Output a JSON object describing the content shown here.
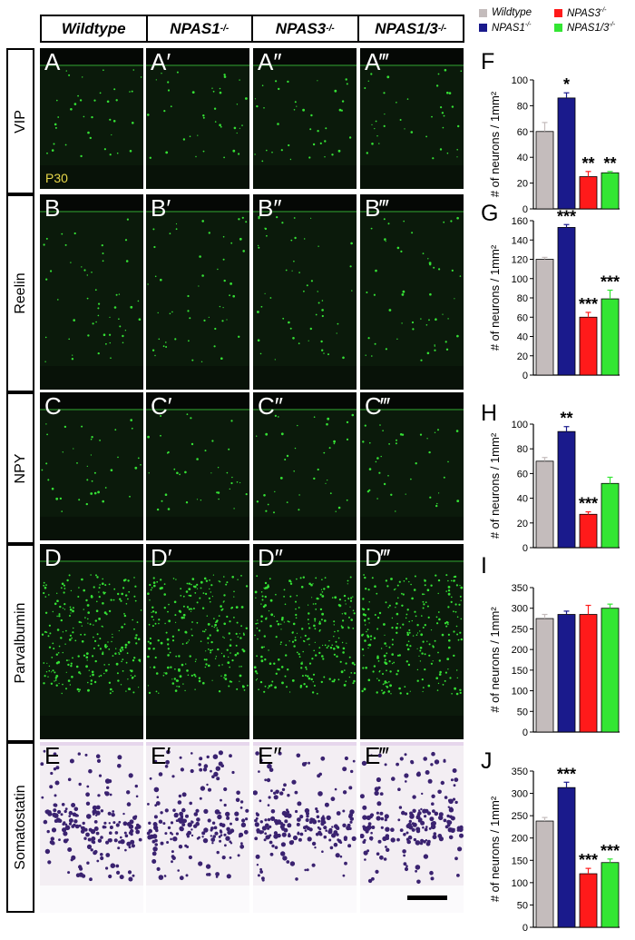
{
  "header": {
    "columns": [
      {
        "label": "Wildtype",
        "sup": ""
      },
      {
        "label": "NPAS1",
        "sup": "-/-"
      },
      {
        "label": "NPAS3",
        "sup": "-/-"
      },
      {
        "label": "NPAS1/3",
        "sup": "-/-"
      }
    ]
  },
  "rows": [
    {
      "label": "VIP",
      "panels": [
        "A",
        "A′",
        "A″",
        "A‴"
      ],
      "stain": "fluor",
      "density": 0.25
    },
    {
      "label": "Reelin",
      "panels": [
        "B",
        "B′",
        "B″",
        "B‴"
      ],
      "stain": "fluor",
      "density": 0.45
    },
    {
      "label": "NPY",
      "panels": [
        "C",
        "C′",
        "C″",
        "C‴"
      ],
      "stain": "fluor",
      "density": 0.25
    },
    {
      "label": "Parvalbumin",
      "panels": [
        "D",
        "D′",
        "D″",
        "D‴"
      ],
      "stain": "fluor-dense",
      "density": 1.0
    },
    {
      "label": "Somatostatin",
      "panels": [
        "E",
        "E′",
        "E″",
        "E‴"
      ],
      "stain": "ish",
      "density": 1.0
    }
  ],
  "age_label": "P30",
  "legend": [
    {
      "label": "Wildtype",
      "sup": "",
      "color": "#c4bcbc"
    },
    {
      "label": "NPAS3",
      "sup": "-/-",
      "color": "#ff1a1a"
    },
    {
      "label": "NPAS1",
      "sup": "-/-",
      "color": "#1a1a8c"
    },
    {
      "label": "NPAS1/3",
      "sup": "-/-",
      "color": "#33e633"
    }
  ],
  "colors": {
    "wildtype": "#c4bcbc",
    "npas1": "#1a1a8c",
    "npas3": "#ff1a1a",
    "npas13": "#33e633",
    "fluor_bg": "#0b1a0b",
    "fluor_cell": "#35e035",
    "ish_bg": "#f3eef3",
    "ish_cell": "#3a2270"
  },
  "chart_data": [
    {
      "type": "bar",
      "letter": "F",
      "ylabel": "# of neurons / 1mm²",
      "ylim": [
        0,
        100
      ],
      "yticks": [
        0,
        20,
        40,
        60,
        80,
        100
      ],
      "categories": [
        "Wildtype",
        "NPAS1-/-",
        "NPAS3-/-",
        "NPAS1/3-/-"
      ],
      "values": [
        60,
        86,
        25,
        28
      ],
      "errors": [
        7,
        4,
        4,
        1
      ],
      "stars": [
        "",
        "*",
        "**",
        "**"
      ]
    },
    {
      "type": "bar",
      "letter": "G",
      "ylabel": "# of neurons / 1mm²",
      "ylim": [
        0,
        160
      ],
      "yticks": [
        0,
        20,
        40,
        60,
        80,
        100,
        120,
        140,
        160
      ],
      "categories": [
        "Wildtype",
        "NPAS1-/-",
        "NPAS3-/-",
        "NPAS1/3-/-"
      ],
      "values": [
        120,
        153,
        60,
        79
      ],
      "errors": [
        2,
        3,
        5,
        9
      ],
      "stars": [
        "",
        "***",
        "***",
        "***"
      ]
    },
    {
      "type": "bar",
      "letter": "H",
      "ylabel": "# of neurons / 1mm²",
      "ylim": [
        0,
        100
      ],
      "yticks": [
        0,
        20,
        40,
        60,
        80,
        100
      ],
      "categories": [
        "Wildtype",
        "NPAS1-/-",
        "NPAS3-/-",
        "NPAS1/3-/-"
      ],
      "values": [
        70,
        94,
        27,
        52
      ],
      "errors": [
        3,
        4,
        2,
        5
      ],
      "stars": [
        "",
        "**",
        "***",
        ""
      ]
    },
    {
      "type": "bar",
      "letter": "I",
      "ylabel": "# of neurons / 1mm²",
      "ylim": [
        0,
        350
      ],
      "yticks": [
        0,
        50,
        100,
        150,
        200,
        250,
        300,
        350
      ],
      "categories": [
        "Wildtype",
        "NPAS1-/-",
        "NPAS3-/-",
        "NPAS1/3-/-"
      ],
      "values": [
        275,
        285,
        285,
        300
      ],
      "errors": [
        10,
        8,
        22,
        10
      ],
      "stars": [
        "",
        "",
        "",
        ""
      ]
    },
    {
      "type": "bar",
      "letter": "J",
      "ylabel": "# of neurons / 1mm²",
      "ylim": [
        0,
        350
      ],
      "yticks": [
        0,
        50,
        100,
        150,
        200,
        250,
        300,
        350
      ],
      "categories": [
        "Wildtype",
        "NPAS1-/-",
        "NPAS3-/-",
        "NPAS1/3-/-"
      ],
      "values": [
        238,
        313,
        120,
        145
      ],
      "errors": [
        8,
        12,
        12,
        8
      ],
      "stars": [
        "",
        "***",
        "***",
        "***"
      ]
    }
  ]
}
